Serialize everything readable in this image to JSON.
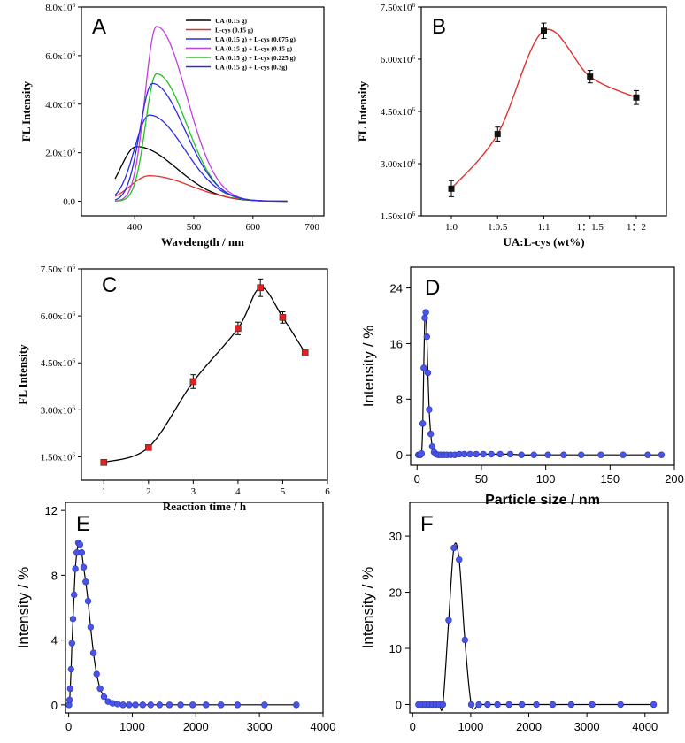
{
  "chart_data": [
    {
      "panel": "A",
      "type": "line",
      "xlabel": "Wavelength / nm",
      "ylabel": "FL Intensity",
      "xlim": [
        310,
        720
      ],
      "ylim": [
        -600000,
        8000000
      ],
      "xticks": [
        400,
        500,
        600,
        700
      ],
      "yticks": [
        0,
        2000000,
        4000000,
        6000000,
        8000000
      ],
      "ytick_labels": [
        "0.0",
        "2.0x10^6",
        "4.0x10^6",
        "6.0x10^6",
        "8.0x10^6"
      ],
      "legend_position": "top-right",
      "series": [
        {
          "name": "UA (0.15 g)",
          "color": "#000000",
          "peak_x": 403,
          "peak_y": 2250000,
          "width_left": 32,
          "width_right": 80
        },
        {
          "name": "L-cys (0.15 g)",
          "color": "#e0302c",
          "peak_x": 425,
          "peak_y": 1050000,
          "width_left": 38,
          "width_right": 82
        },
        {
          "name": "UA (0.15 g) + L-cys (0.075 g)",
          "color": "#2a2ae8",
          "peak_x": 425,
          "peak_y": 3550000,
          "width_left": 30,
          "width_right": 70
        },
        {
          "name": "UA (0.15 g) + L-cys (0.15 g)",
          "color": "#c040e0",
          "peak_x": 437,
          "peak_y": 7200000,
          "width_left": 23,
          "width_right": 60
        },
        {
          "name": "UA (0.15 g) + L-cys (0.225 g)",
          "color": "#22c322",
          "peak_x": 437,
          "peak_y": 5250000,
          "width_left": 22,
          "width_right": 60
        },
        {
          "name": "UA (0.15 g) + L-cys (0.3g)",
          "color": "#2a2ae8",
          "peak_x": 430,
          "peak_y": 4850000,
          "width_left": 25,
          "width_right": 65
        }
      ],
      "x_start": 367,
      "x_end": 660
    },
    {
      "panel": "B",
      "type": "scatter",
      "xlabel": "UA:L-cys (wt%)",
      "ylabel": "FL Intensity",
      "categories": [
        "1:0",
        "1:0.5",
        "1:1",
        "1：1.5",
        "1：2"
      ],
      "values": [
        2280000,
        3850000,
        6820000,
        5500000,
        4900000
      ],
      "errors": [
        230000,
        200000,
        220000,
        180000,
        200000
      ],
      "ylim": [
        1500000,
        7500000
      ],
      "yticks": [
        1500000,
        3000000,
        4500000,
        6000000,
        7500000
      ],
      "ytick_labels": [
        "1.50x10^6",
        "3.00x10^6",
        "4.50x10^6",
        "6.00x10^6",
        "7.50x10^6"
      ],
      "line_color": "#e03030",
      "marker_color": "#111111"
    },
    {
      "panel": "C",
      "type": "scatter",
      "xlabel": "Reaction time / h",
      "ylabel": "FL Intensity",
      "x": [
        1,
        2,
        3,
        4,
        4.5,
        5,
        5.5
      ],
      "values": [
        1320000,
        1800000,
        3900000,
        5600000,
        6900000,
        5950000,
        4820000
      ],
      "errors": [
        60000,
        60000,
        220000,
        200000,
        280000,
        180000,
        60000
      ],
      "xlim": [
        0.5,
        6
      ],
      "ylim": [
        750000,
        7500000
      ],
      "xticks": [
        1,
        2,
        3,
        4,
        5,
        6
      ],
      "yticks": [
        1500000,
        3000000,
        4500000,
        6000000,
        7500000
      ],
      "ytick_labels": [
        "1.50x10^6",
        "3.00x10^6",
        "4.50x10^6",
        "6.00x10^6",
        "7.50x10^6"
      ],
      "marker_color": "#e52020"
    },
    {
      "panel": "D",
      "type": "scatter",
      "xlabel": "Particle size / nm",
      "ylabel": "Intensity / %",
      "x": [
        1.0,
        1.8,
        2.6,
        3.5,
        4.4,
        5.2,
        6.0,
        6.8,
        7.6,
        8.4,
        9.4,
        10.6,
        11.8,
        13.2,
        14.8,
        16.6,
        18.6,
        20.8,
        23.3,
        26.1,
        29.3,
        32.8,
        36.7,
        41.1,
        46.0,
        51.5,
        57.7,
        64.6,
        72.4,
        81.1,
        90.8,
        101.7,
        113.9,
        127.6,
        142.9,
        160.1,
        179.3,
        190.0
      ],
      "values": [
        0,
        0,
        0,
        0.2,
        4.5,
        12.5,
        19.7,
        20.5,
        17,
        11.8,
        6.5,
        3,
        1.2,
        0.4,
        0.1,
        0,
        0,
        0,
        0,
        0,
        0,
        0.1,
        0.1,
        0.1,
        0.1,
        0.1,
        0.1,
        0.1,
        0.1,
        0,
        0,
        0,
        0,
        0,
        0,
        0,
        0,
        0
      ],
      "xlim": [
        -5,
        200
      ],
      "ylim": [
        -1.5,
        27
      ],
      "xticks": [
        0,
        50,
        100,
        150,
        200
      ],
      "yticks": [
        0,
        8,
        16,
        24
      ],
      "marker_color": "#4a55e8"
    },
    {
      "panel": "E",
      "type": "scatter",
      "xlabel": "",
      "ylabel": "Intensity / %",
      "x": [
        5,
        15,
        25,
        38,
        52,
        68,
        85,
        105,
        128,
        152,
        178,
        205,
        235,
        268,
        305,
        345,
        390,
        440,
        495,
        555,
        620,
        690,
        770,
        855,
        950,
        1050,
        1165,
        1290,
        1430,
        1585,
        1760,
        1950,
        2160,
        2395,
        2655,
        3080,
        3580
      ],
      "values": [
        0,
        0.3,
        1,
        2.2,
        3.8,
        5.3,
        6.8,
        8.4,
        9.4,
        10,
        9.9,
        9.4,
        8.5,
        7.6,
        6.4,
        4.8,
        3.2,
        1.9,
        1.0,
        0.5,
        0.2,
        0.1,
        0.05,
        0,
        0,
        0,
        0,
        0,
        0,
        0,
        0,
        0,
        0,
        0,
        0,
        0,
        0
      ],
      "xlim": [
        -50,
        4000
      ],
      "ylim": [
        -0.5,
        12.5
      ],
      "xticks": [
        0,
        1000,
        2000,
        3000,
        4000
      ],
      "yticks": [
        0,
        4,
        8,
        12
      ],
      "marker_color": "#4a55e8"
    },
    {
      "panel": "F",
      "type": "scatter",
      "xlabel": "",
      "ylabel": "Intensity / %",
      "x": [
        100,
        160,
        220,
        280,
        340,
        400,
        460,
        520,
        620,
        710,
        800,
        900,
        1010,
        1140,
        1290,
        1460,
        1660,
        1880,
        2130,
        2410,
        2730,
        3090,
        3580,
        4150
      ],
      "values": [
        0,
        0,
        0,
        0,
        0,
        0,
        0,
        0,
        15,
        27.9,
        25.8,
        11.5,
        0,
        0,
        0,
        0,
        0,
        0,
        0,
        0,
        0,
        0,
        0,
        0
      ],
      "xlim": [
        -50,
        4400
      ],
      "ylim": [
        -1.5,
        36
      ],
      "xticks": [
        0,
        1000,
        2000,
        3000,
        4000
      ],
      "yticks": [
        0,
        10,
        20,
        30
      ],
      "marker_color": "#4a55e8"
    }
  ]
}
